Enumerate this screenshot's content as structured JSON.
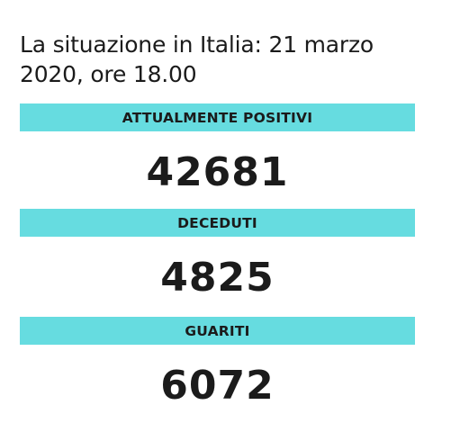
{
  "header": {
    "title": "La situazione in Italia: 21 marzo 2020, ore 18.00"
  },
  "stats": [
    {
      "label": "ATTUALMENTE POSITIVI",
      "value": "42681"
    },
    {
      "label": "DECEDUTI",
      "value": "4825"
    },
    {
      "label": "GUARITI",
      "value": "6072"
    }
  ],
  "colors": {
    "banner": "#66dce0",
    "text": "#1b1b1b",
    "background": "#ffffff"
  }
}
